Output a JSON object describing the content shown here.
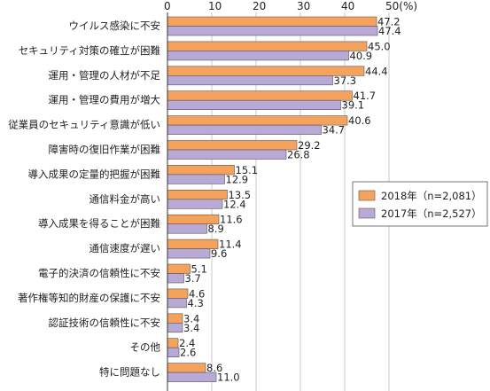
{
  "chart_data": {
    "type": "bar",
    "orientation": "horizontal",
    "categories": [
      "ウイルス感染に不安",
      "セキュリティ対策の確立が困難",
      "運用・管理の人材が不足",
      "運用・管理の費用が増大",
      "従業員のセキュリティ意識が低い",
      "障害時の復旧作業が困難",
      "導入成果の定量的把握が困難",
      "通信料金が高い",
      "導入成果を得ることが困難",
      "通信速度が遅い",
      "電子的決済の信頼性に不安",
      "著作権等知的財産の保護に不安",
      "認証技術の信頼性に不安",
      "その他",
      "特に問題なし"
    ],
    "series": [
      {
        "name": "2018年（n=2,081）",
        "color": "#f5a35c",
        "values": [
          47.2,
          45.0,
          44.4,
          41.7,
          40.6,
          29.2,
          15.1,
          13.5,
          11.6,
          11.4,
          5.1,
          4.6,
          3.4,
          2.4,
          8.6
        ]
      },
      {
        "name": "2017年（n=2,527）",
        "color": "#b8a9d6",
        "values": [
          47.4,
          40.9,
          37.3,
          39.1,
          34.7,
          26.8,
          12.9,
          12.4,
          8.9,
          9.6,
          3.7,
          4.3,
          3.4,
          2.6,
          11.0
        ]
      }
    ],
    "value_labels_2018": [
      "47.2",
      "45.0",
      "44.4",
      "41.7",
      "40.6",
      "29.2",
      "15.1",
      "13.5",
      "11.6",
      "11.4",
      "5.1",
      "4.6",
      "3.4",
      "2.4",
      "8.6"
    ],
    "value_labels_2017": [
      "47.4",
      "40.9",
      "37.3",
      "39.1",
      "34.7",
      "26.8",
      "12.9",
      "12.4",
      "8.9",
      "9.6",
      "3.7",
      "4.3",
      "3.4",
      "2.6",
      "11.0"
    ],
    "xlim": [
      0,
      50
    ],
    "xticks": [
      0,
      10,
      20,
      30,
      40,
      50
    ],
    "xtick_labels": [
      "0",
      "10",
      "20",
      "30",
      "40",
      "50(%)"
    ],
    "grid": true,
    "legend_position": "right"
  }
}
